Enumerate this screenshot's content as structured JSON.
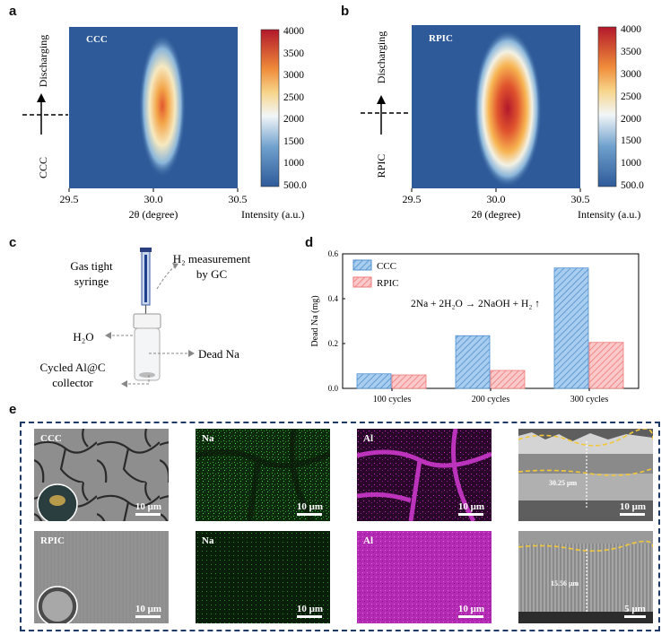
{
  "panel_labels": {
    "a": "a",
    "b": "b",
    "c": "c",
    "d": "d",
    "e": "e"
  },
  "heatmaps": [
    {
      "tag": "CCC",
      "state_label": "CCC",
      "direction_label": "Discharging",
      "xticks": [
        "29.5",
        "30.0",
        "30.5"
      ],
      "xlabel": "2θ (degree)",
      "colorbar_ticks": [
        "4000",
        "3500",
        "3000",
        "2500",
        "2000",
        "1500",
        "1000",
        "500.0"
      ],
      "colorbar_label": "Intensity (a.u.)"
    },
    {
      "tag": "RPIC",
      "state_label": "RPIC",
      "direction_label": "Discharging",
      "xticks": [
        "29.5",
        "30.0",
        "30.5"
      ],
      "xlabel": "2θ (degree)",
      "colorbar_ticks": [
        "4000",
        "3500",
        "3000",
        "2500",
        "2000",
        "1500",
        "1000",
        "500.0"
      ],
      "colorbar_label": "Intensity (a.u.)"
    }
  ],
  "setup": {
    "syringe_label_1": "Gas tight",
    "syringe_label_2": "syringe",
    "gc_label_1": "H₂ measurement",
    "gc_label_2": "by GC",
    "water_label": "H₂O",
    "dead_na_label": "Dead Na",
    "collector_label_1": "Cycled Al@C",
    "collector_label_2": "collector"
  },
  "chart_data": {
    "type": "bar",
    "categories": [
      "100 cycles",
      "200 cycles",
      "300 cycles"
    ],
    "series": [
      {
        "name": "CCC",
        "values": [
          0.065,
          0.235,
          0.537
        ],
        "color": "#5b9bd5"
      },
      {
        "name": "RPIC",
        "values": [
          0.06,
          0.08,
          0.205
        ],
        "color": "#f08080"
      }
    ],
    "ylabel": "Dead Na (mg)",
    "ylim": [
      0,
      0.6
    ],
    "yticks": [
      "0.0",
      "0.2",
      "0.4",
      "0.6"
    ],
    "annotation": "2Na + 2H₂O → 2NaOH + H₂ ↑",
    "legend_position": "top-left"
  },
  "micrographs": {
    "row1": [
      {
        "tag": "CCC",
        "scale": "10 μm"
      },
      {
        "tag": "Na",
        "scale": "10 μm"
      },
      {
        "tag": "Al",
        "scale": "10 μm"
      },
      {
        "tag": "",
        "scale": "10 μm",
        "thickness": "30.25 μm"
      }
    ],
    "row2": [
      {
        "tag": "RPIC",
        "scale": "10 μm"
      },
      {
        "tag": "Na",
        "scale": "10 μm"
      },
      {
        "tag": "Al",
        "scale": "10 μm"
      },
      {
        "tag": "",
        "scale": "5 μm",
        "thickness": "15.56 μm"
      }
    ]
  }
}
